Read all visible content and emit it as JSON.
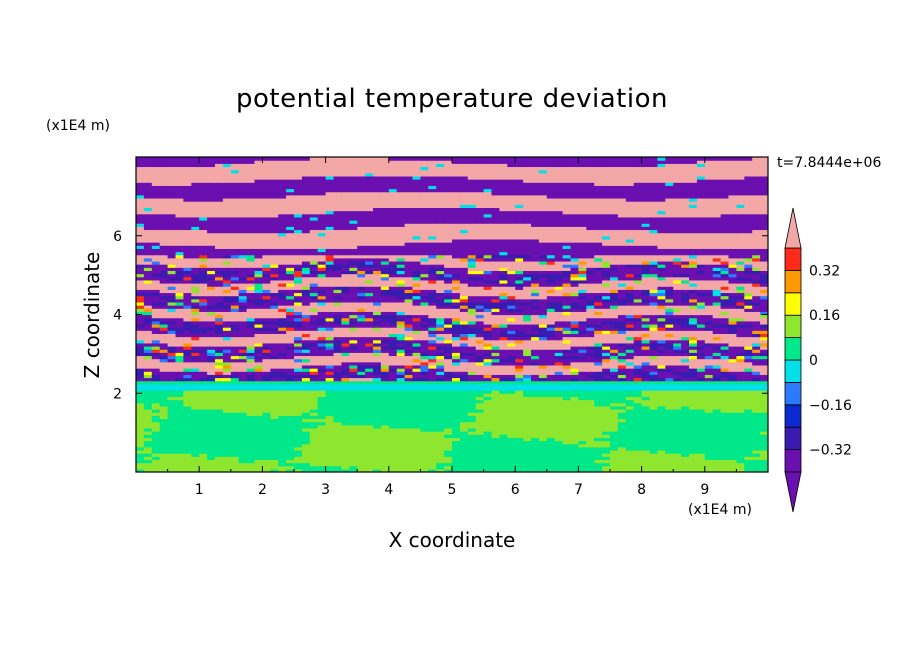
{
  "chart_data": {
    "type": "heatmap",
    "title": "potential temperature deviation",
    "xlabel": "X coordinate",
    "ylabel": "Z coordinate",
    "x_unit": "(x1E4 m)",
    "z_unit": "(x1E4 m)",
    "time_label": "t=7.8444e+06",
    "xlim": [
      0,
      10
    ],
    "zlim": [
      0,
      8
    ],
    "x_ticks": [
      1,
      2,
      3,
      4,
      5,
      6,
      7,
      8,
      9
    ],
    "z_ticks": [
      2,
      4,
      6
    ],
    "colorbar": {
      "levels": [
        -0.4,
        -0.32,
        -0.24,
        -0.16,
        -0.08,
        0,
        0.08,
        0.16,
        0.24,
        0.32,
        0.4
      ],
      "labeled_levels": [
        0.32,
        0.16,
        0,
        -0.16,
        -0.32
      ],
      "colors_low_to_high": [
        "#6a0fb0",
        "#3b1ab0",
        "#0a2ad0",
        "#2a7bff",
        "#00e0e8",
        "#00e88a",
        "#8ee62e",
        "#ffff00",
        "#ff9900",
        "#ff2a1a",
        "#f4a7a7"
      ],
      "extend": "both"
    },
    "bands": [
      {
        "z_min": 0.0,
        "z_max": 2.1,
        "description": "green / light green turbulent patches"
      },
      {
        "z_min": 2.1,
        "z_max": 2.35,
        "description": "cyan and green thin layer"
      },
      {
        "z_min": 2.35,
        "z_max": 5.5,
        "description": "mixed purple, pink, blue, green, yellow, red filaments"
      },
      {
        "z_min": 5.5,
        "z_max": 8.0,
        "description": "alternating purple and pink horizontal stripes"
      }
    ]
  }
}
